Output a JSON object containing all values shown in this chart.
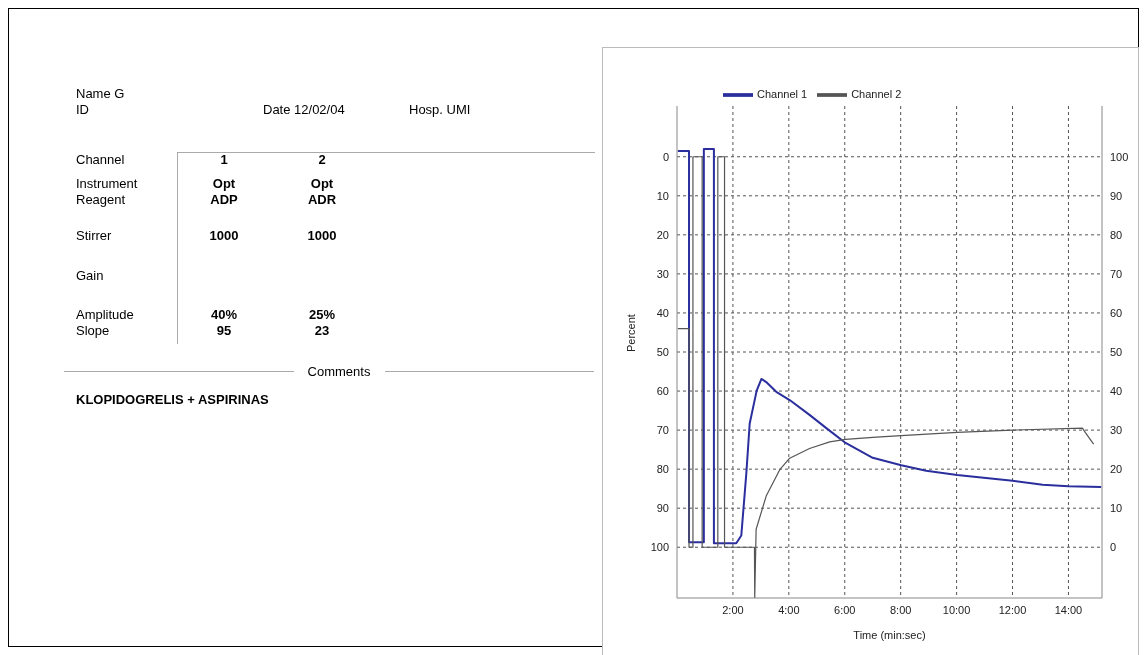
{
  "chart_data": [
    {
      "type": "other",
      "annotations": [
        "Name G",
        "ID",
        "Date 12/02/04",
        "Hosp. UMI",
        "Channel",
        "1",
        "2",
        "Instrument",
        "Opt",
        "Opt",
        "Reagent",
        "ADP",
        "ADR",
        "Stirrer",
        "1000",
        "1000",
        "Gain",
        "Amplitude",
        "40%",
        "25%",
        "Slope",
        "95",
        "23",
        "Comments",
        "KLOPIDOGRELIS + ASPIRINAS"
      ]
    },
    {
      "type": "line",
      "ylabel": "Percent",
      "xlabel": "Time (min:sec)",
      "legend": "top",
      "grid": true,
      "marker": "none",
      "line_style": "solid",
      "xlim": [
        0,
        15.2
      ],
      "xticks": [
        {
          "value": 2,
          "label": "2:00"
        },
        {
          "value": 4,
          "label": "4:00"
        },
        {
          "value": 6,
          "label": "6:00"
        },
        {
          "value": 8,
          "label": "8:00"
        },
        {
          "value": 10,
          "label": "10:00"
        },
        {
          "value": 12,
          "label": "12:00"
        },
        {
          "value": 14,
          "label": "14:00"
        }
      ],
      "ylim": [
        113,
        -13
      ],
      "yticks": [
        0,
        10,
        20,
        30,
        40,
        50,
        60,
        70,
        80,
        90,
        100
      ],
      "y2lim": [
        -13,
        113
      ],
      "y2ticks": [
        0,
        10,
        20,
        30,
        40,
        50,
        60,
        70,
        80,
        90,
        100
      ],
      "series": [
        {
          "name": "Channel 1",
          "color": "#2b2f9e",
          "x": [
            0.03,
            0.43,
            0.43,
            0.96,
            0.96,
            1.32,
            1.32,
            2.12,
            2.3,
            2.48,
            2.6,
            2.85,
            3.02,
            3.19,
            3.55,
            4.03,
            4.74,
            5.34,
            6.03,
            7.0,
            8.02,
            8.91,
            10.02,
            12.0,
            13.08,
            14.0,
            15.17
          ],
          "values": [
            -1.5,
            -1.5,
            98.7,
            98.7,
            -2,
            -2,
            99,
            99,
            97,
            81,
            68.3,
            59.9,
            56.9,
            57.7,
            60.2,
            62.3,
            66.1,
            69.5,
            73.3,
            77.1,
            79,
            80.4,
            81.5,
            83,
            84,
            84.4,
            84.6
          ]
        },
        {
          "name": "Channel 2",
          "color": "#555555",
          "axis": "y2",
          "x": [
            0.03,
            0.43,
            0.43,
            0.57,
            0.57,
            0.9,
            0.9,
            1.46,
            1.46,
            1.7,
            1.7,
            2.77,
            2.78,
            2.83,
            3.19,
            3.67,
            4.03,
            4.74,
            5.46,
            6.03,
            7.13,
            8.02,
            10.02,
            12.0,
            14.5,
            14.6,
            14.9
          ],
          "values": [
            56,
            56,
            0,
            0,
            100,
            100,
            0,
            0,
            100,
            100,
            0,
            0,
            -13,
            4.6,
            13.1,
            19.8,
            22.8,
            25.3,
            27,
            27.6,
            28.2,
            28.6,
            29.4,
            30,
            30.5,
            29.4,
            26.4
          ]
        }
      ]
    }
  ]
}
